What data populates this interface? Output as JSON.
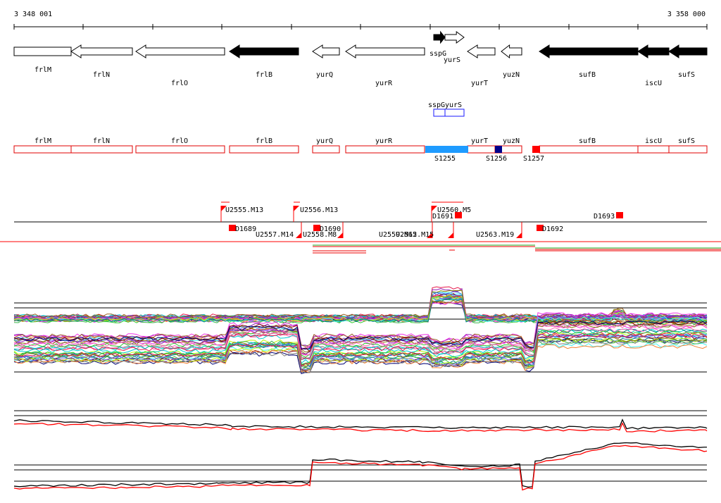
{
  "ruler": {
    "start_label": "3 348 001",
    "end_label": "3 358 000"
  },
  "genes": [
    {
      "name": "frlM",
      "strand": "+",
      "fill": "white",
      "pos": "upper"
    },
    {
      "name": "frlN",
      "strand": "-",
      "fill": "white",
      "pos": "lower"
    },
    {
      "name": "frlO",
      "strand": "-",
      "fill": "white",
      "pos": "lower2"
    },
    {
      "name": "frlB",
      "strand": "-",
      "fill": "black",
      "pos": "lower"
    },
    {
      "name": "yurQ",
      "strand": "-",
      "fill": "white",
      "pos": "lower"
    },
    {
      "name": "yurR",
      "strand": "-",
      "fill": "white",
      "pos": "lower2"
    },
    {
      "name": "sspG",
      "strand": "+",
      "fill": "black",
      "pos": "right"
    },
    {
      "name": "yurS",
      "strand": "+",
      "fill": "white",
      "pos": "right"
    },
    {
      "name": "yurT",
      "strand": "-",
      "fill": "white",
      "pos": "lower2"
    },
    {
      "name": "yuzN",
      "strand": "-",
      "fill": "white",
      "pos": "lower"
    },
    {
      "name": "sufB",
      "strand": "-",
      "fill": "black",
      "pos": "lower"
    },
    {
      "name": "iscU",
      "strand": "-",
      "fill": "black",
      "pos": "lower2"
    },
    {
      "name": "sufS",
      "strand": "-",
      "fill": "black",
      "pos": "lower"
    }
  ],
  "small_genes": [
    {
      "name": "sspG"
    },
    {
      "name": "yurS"
    }
  ],
  "red_boxes": [
    {
      "name": "frlM"
    },
    {
      "name": "frlN"
    },
    {
      "name": "frlO"
    },
    {
      "name": "frlB"
    },
    {
      "name": "yurQ"
    },
    {
      "name": "yurR"
    },
    {
      "name": "yurT"
    },
    {
      "name": "yuzN"
    },
    {
      "name": "sufB"
    },
    {
      "name": "iscU"
    },
    {
      "name": "sufS"
    }
  ],
  "segments": [
    {
      "name": "S1255",
      "color": "#1e9bff"
    },
    {
      "name": "S1256",
      "color": "#00008b"
    },
    {
      "name": "S1257",
      "color": "#ff0000"
    }
  ],
  "features_upper": [
    {
      "name": "U2555.M13"
    },
    {
      "name": "U2556.M13"
    },
    {
      "name": "U2560.M5"
    }
  ],
  "features_lower": [
    {
      "name": "U2557.M14"
    },
    {
      "name": "U2558.M8"
    },
    {
      "name": "U2559.M15"
    },
    {
      "name": "U2562.M15"
    },
    {
      "name": "U2563.M19"
    }
  ],
  "d_markers": [
    {
      "name": "D1689"
    },
    {
      "name": "D1690"
    },
    {
      "name": "D1691"
    },
    {
      "name": "D1692"
    },
    {
      "name": "D1693"
    }
  ],
  "colors": {
    "accent_red": "#ff0000",
    "black": "#000000"
  }
}
